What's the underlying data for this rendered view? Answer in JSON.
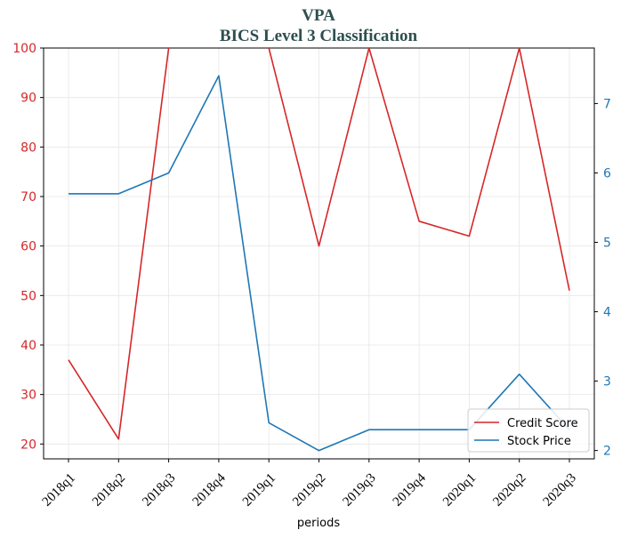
{
  "chart_data": {
    "type": "line",
    "title": "VPA",
    "subtitle": "BICS Level 3 Classification",
    "xlabel": "periods",
    "categories": [
      "2018q1",
      "2018q2",
      "2018q3",
      "2018q4",
      "2019q1",
      "2019q2",
      "2019q3",
      "2019q4",
      "2020q1",
      "2020q2",
      "2020q3"
    ],
    "y_left": {
      "ylim": [
        17,
        100
      ],
      "ticks": [
        20,
        30,
        40,
        50,
        60,
        70,
        80,
        90,
        100
      ],
      "color": "#d62728"
    },
    "y_right": {
      "ylim": [
        1.88,
        7.8
      ],
      "ticks": [
        2,
        3,
        4,
        5,
        6,
        7
      ],
      "color": "#1f77b4"
    },
    "series": [
      {
        "name": "Credit Score",
        "axis": "left",
        "color": "#d62728",
        "values": [
          37,
          21,
          100,
          null,
          100,
          60,
          100,
          65,
          62,
          100,
          51
        ]
      },
      {
        "name": "Stock Price",
        "axis": "right",
        "color": "#1f77b4",
        "values": [
          5.7,
          5.7,
          6.0,
          7.4,
          2.4,
          2.0,
          2.3,
          2.3,
          2.3,
          3.1,
          2.3
        ]
      }
    ],
    "grid": true,
    "legend_position": "lower-right"
  }
}
